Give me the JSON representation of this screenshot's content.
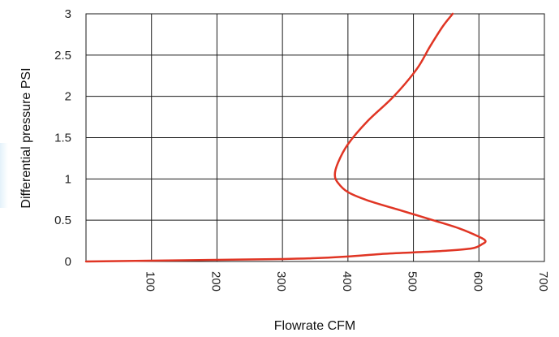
{
  "chart_data": {
    "type": "line",
    "title": "",
    "xlabel": "Flowrate CFM",
    "ylabel": "Differential pressure PSI",
    "xlim": [
      0,
      700
    ],
    "ylim": [
      0,
      3
    ],
    "x_ticks": [
      100,
      200,
      300,
      400,
      500,
      600,
      700
    ],
    "x_tick_labels": [
      "100",
      "200",
      "300",
      "400",
      "500",
      "600",
      "700"
    ],
    "y_ticks": [
      0,
      0.5,
      1,
      1.5,
      2,
      2.5,
      3
    ],
    "y_tick_labels": [
      "0",
      "0.5",
      "1",
      "1.5",
      "2",
      "2.5",
      "3"
    ],
    "grid": true,
    "legend": "none",
    "series": [
      {
        "color": "#e03524",
        "points": [
          [
            0,
            0.0
          ],
          [
            100,
            0.01
          ],
          [
            200,
            0.02
          ],
          [
            300,
            0.03
          ],
          [
            350,
            0.04
          ],
          [
            400,
            0.06
          ],
          [
            450,
            0.09
          ],
          [
            500,
            0.11
          ],
          [
            550,
            0.13
          ],
          [
            590,
            0.16
          ],
          [
            605,
            0.21
          ],
          [
            610,
            0.25
          ],
          [
            600,
            0.3
          ],
          [
            570,
            0.4
          ],
          [
            530,
            0.5
          ],
          [
            480,
            0.62
          ],
          [
            430,
            0.74
          ],
          [
            400,
            0.84
          ],
          [
            385,
            0.95
          ],
          [
            380,
            1.05
          ],
          [
            385,
            1.2
          ],
          [
            400,
            1.42
          ],
          [
            430,
            1.7
          ],
          [
            470,
            2.0
          ],
          [
            505,
            2.33
          ],
          [
            525,
            2.6
          ],
          [
            545,
            2.85
          ],
          [
            560,
            3.0
          ]
        ]
      }
    ]
  }
}
